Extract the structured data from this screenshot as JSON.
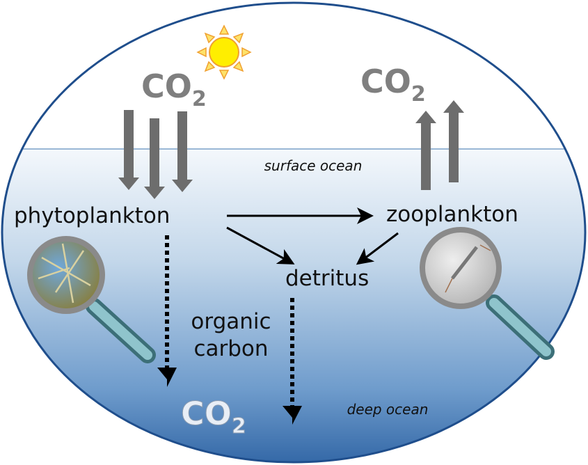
{
  "co2_top_left": {
    "main": "CO",
    "sub": "2"
  },
  "co2_top_right": {
    "main": "CO",
    "sub": "2"
  },
  "co2_bottom": {
    "main": "CO",
    "sub": "2"
  },
  "zones": {
    "surface": "surface ocean",
    "deep": "deep ocean"
  },
  "nodes": {
    "phytoplankton": "phytoplankton",
    "zooplankton": "zooplankton",
    "detritus": "detritus"
  },
  "flux_label": [
    "organic",
    "carbon"
  ]
}
